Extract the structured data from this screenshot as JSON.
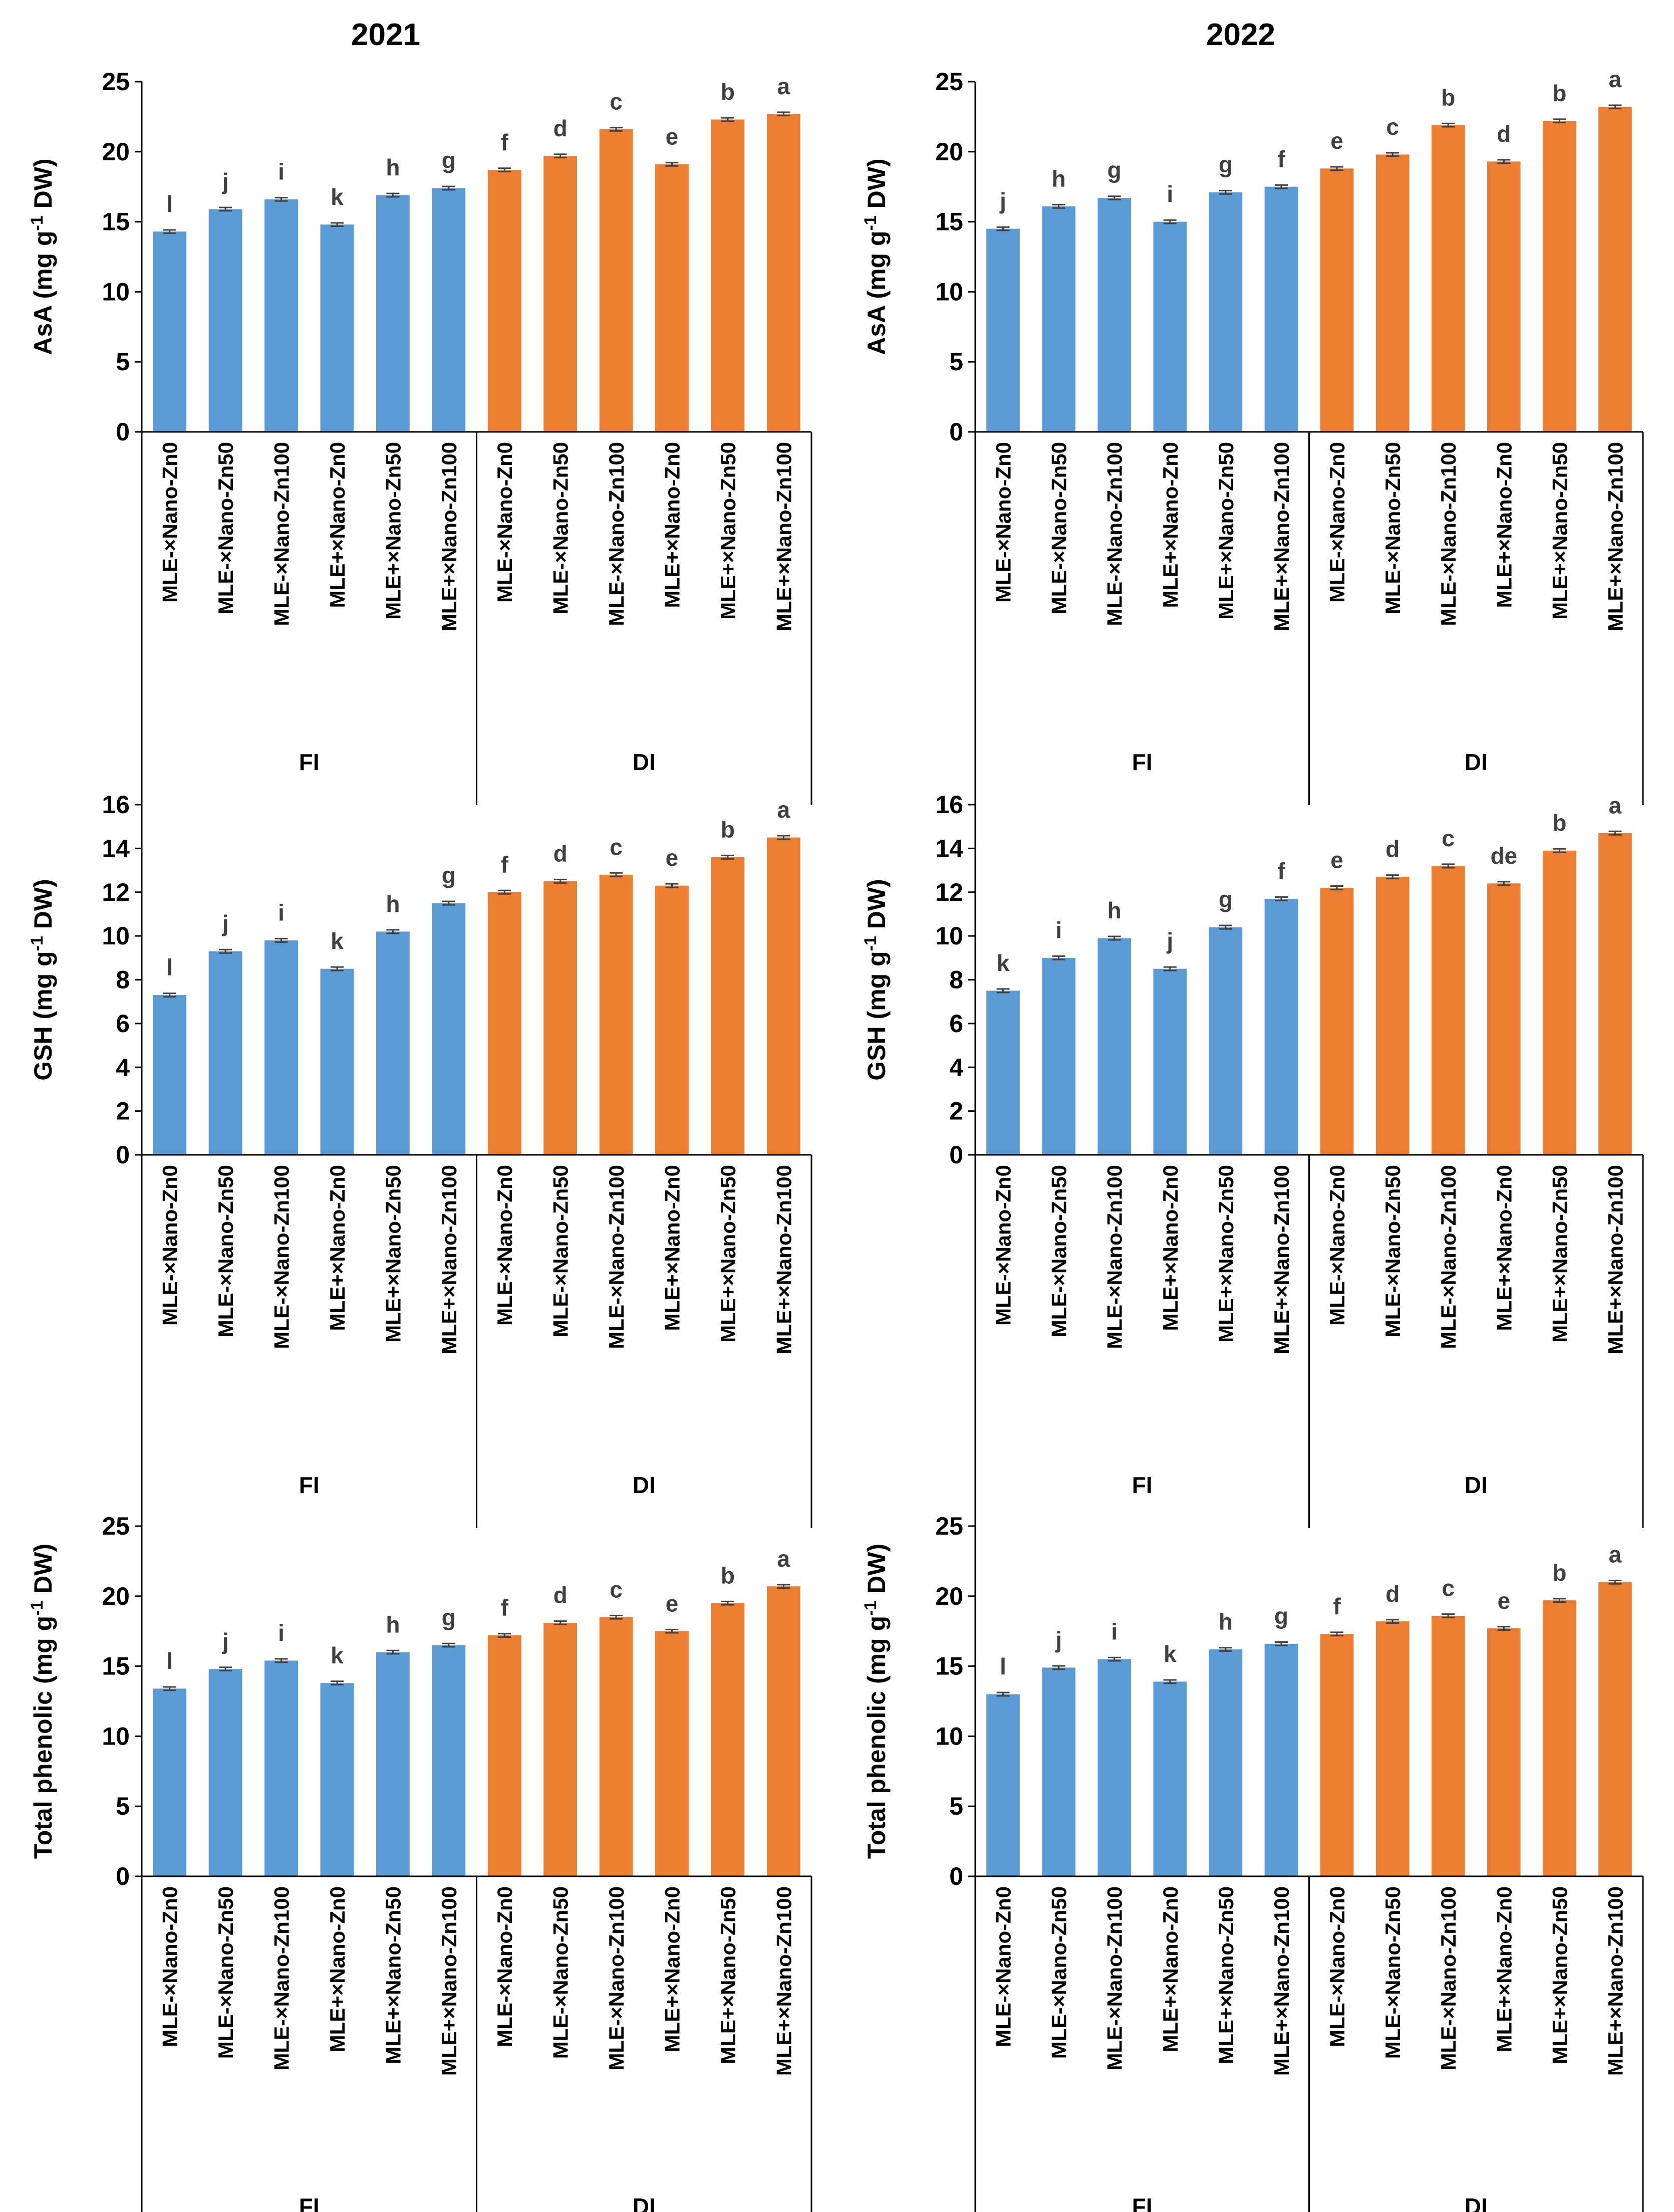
{
  "colors": {
    "FI": "#5B9BD5",
    "DI": "#ED7D31",
    "axis": "#000000",
    "error": "#404040",
    "letters": "#404040"
  },
  "years": [
    "2021",
    "2022"
  ],
  "categories": [
    "MLE-×Nano-Zn0",
    "MLE-×Nano-Zn50",
    "MLE-×Nano-Zn100",
    "MLE+×Nano-Zn0",
    "MLE+×Nano-Zn50",
    "MLE+×Nano-Zn100"
  ],
  "groups": [
    "FI",
    "DI"
  ],
  "chart_data": [
    {
      "type": "bar",
      "title": "2021",
      "ylabel": "AsA (mg g-1 DW)",
      "ylabel_main": "AsA (mg g",
      "ylabel_sup": "-1",
      "ylabel_tail": " DW)",
      "ylim": [
        0,
        25
      ],
      "yticks": [
        0,
        5,
        10,
        15,
        20,
        25
      ],
      "groups": [
        "FI",
        "DI"
      ],
      "series": [
        {
          "name": "FI",
          "values": [
            14.3,
            15.9,
            16.6,
            14.8,
            16.9,
            17.4
          ],
          "errors": [
            0.12,
            0.12,
            0.12,
            0.12,
            0.12,
            0.12
          ],
          "letters": [
            "l",
            "j",
            "i",
            "k",
            "h",
            "g"
          ]
        },
        {
          "name": "DI",
          "values": [
            18.7,
            19.7,
            21.6,
            19.1,
            22.3,
            22.7
          ],
          "errors": [
            0.12,
            0.12,
            0.12,
            0.12,
            0.12,
            0.12
          ],
          "letters": [
            "f",
            "d",
            "c",
            "e",
            "b",
            "a"
          ]
        }
      ]
    },
    {
      "type": "bar",
      "title": "2022",
      "ylabel": "AsA (mg g-1 DW)",
      "ylabel_main": "AsA (mg g",
      "ylabel_sup": "-1",
      "ylabel_tail": " DW)",
      "ylim": [
        0,
        25
      ],
      "yticks": [
        0,
        5,
        10,
        15,
        20,
        25
      ],
      "groups": [
        "FI",
        "DI"
      ],
      "series": [
        {
          "name": "FI",
          "values": [
            14.5,
            16.1,
            16.7,
            15.0,
            17.1,
            17.5
          ],
          "errors": [
            0.12,
            0.12,
            0.12,
            0.12,
            0.12,
            0.12
          ],
          "letters": [
            "j",
            "h",
            "g",
            "i",
            "g",
            "f"
          ]
        },
        {
          "name": "DI",
          "values": [
            18.8,
            19.8,
            21.9,
            19.3,
            22.2,
            23.2
          ],
          "errors": [
            0.12,
            0.12,
            0.12,
            0.12,
            0.12,
            0.12
          ],
          "letters": [
            "e",
            "c",
            "b",
            "d",
            "b",
            "a"
          ]
        }
      ]
    },
    {
      "type": "bar",
      "title": "",
      "ylabel": "GSH (mg g-1 DW)",
      "ylabel_main": "GSH (mg g",
      "ylabel_sup": "-1",
      "ylabel_tail": " DW)",
      "ylim": [
        0,
        16
      ],
      "yticks": [
        0,
        2,
        4,
        6,
        8,
        10,
        12,
        14,
        16
      ],
      "groups": [
        "FI",
        "DI"
      ],
      "series": [
        {
          "name": "FI",
          "values": [
            7.3,
            9.3,
            9.8,
            8.5,
            10.2,
            11.5
          ],
          "errors": [
            0.08,
            0.08,
            0.08,
            0.08,
            0.08,
            0.08
          ],
          "letters": [
            "l",
            "j",
            "i",
            "k",
            "h",
            "g"
          ]
        },
        {
          "name": "DI",
          "values": [
            12.0,
            12.5,
            12.8,
            12.3,
            13.6,
            14.5
          ],
          "errors": [
            0.08,
            0.08,
            0.08,
            0.08,
            0.08,
            0.08
          ],
          "letters": [
            "f",
            "d",
            "c",
            "e",
            "b",
            "a"
          ]
        }
      ]
    },
    {
      "type": "bar",
      "title": "",
      "ylabel": "GSH (mg g-1 DW)",
      "ylabel_main": "GSH (mg g",
      "ylabel_sup": "-1",
      "ylabel_tail": " DW)",
      "ylim": [
        0,
        16
      ],
      "yticks": [
        0,
        2,
        4,
        6,
        8,
        10,
        12,
        14,
        16
      ],
      "groups": [
        "FI",
        "DI"
      ],
      "series": [
        {
          "name": "FI",
          "values": [
            7.5,
            9.0,
            9.9,
            8.5,
            10.4,
            11.7
          ],
          "errors": [
            0.08,
            0.08,
            0.08,
            0.08,
            0.08,
            0.08
          ],
          "letters": [
            "k",
            "i",
            "h",
            "j",
            "g",
            "f"
          ]
        },
        {
          "name": "DI",
          "values": [
            12.2,
            12.7,
            13.2,
            12.4,
            13.9,
            14.7
          ],
          "errors": [
            0.08,
            0.08,
            0.08,
            0.08,
            0.08,
            0.08
          ],
          "letters": [
            "e",
            "d",
            "c",
            "de",
            "b",
            "a"
          ]
        }
      ]
    },
    {
      "type": "bar",
      "title": "",
      "ylabel": "Total phenolic (mg g-1 DW)",
      "ylabel_main": "Total phenolic (mg g",
      "ylabel_sup": "-1",
      "ylabel_tail": " DW)",
      "ylim": [
        0,
        25
      ],
      "yticks": [
        0,
        5,
        10,
        15,
        20,
        25
      ],
      "groups": [
        "FI",
        "DI"
      ],
      "series": [
        {
          "name": "FI",
          "values": [
            13.4,
            14.8,
            15.4,
            13.8,
            16.0,
            16.5
          ],
          "errors": [
            0.12,
            0.12,
            0.12,
            0.12,
            0.12,
            0.12
          ],
          "letters": [
            "l",
            "j",
            "i",
            "k",
            "h",
            "g"
          ]
        },
        {
          "name": "DI",
          "values": [
            17.2,
            18.1,
            18.5,
            17.5,
            19.5,
            20.7
          ],
          "errors": [
            0.12,
            0.12,
            0.12,
            0.12,
            0.12,
            0.12
          ],
          "letters": [
            "f",
            "d",
            "c",
            "e",
            "b",
            "a"
          ]
        }
      ]
    },
    {
      "type": "bar",
      "title": "",
      "ylabel": "Total phenolic (mg g-1 DW)",
      "ylabel_main": "Total phenolic (mg g",
      "ylabel_sup": "-1",
      "ylabel_tail": " DW)",
      "ylim": [
        0,
        25
      ],
      "yticks": [
        0,
        5,
        10,
        15,
        20,
        25
      ],
      "groups": [
        "FI",
        "DI"
      ],
      "series": [
        {
          "name": "FI",
          "values": [
            13.0,
            14.9,
            15.5,
            13.9,
            16.2,
            16.6
          ],
          "errors": [
            0.12,
            0.12,
            0.12,
            0.12,
            0.12,
            0.12
          ],
          "letters": [
            "l",
            "j",
            "i",
            "k",
            "h",
            "g"
          ]
        },
        {
          "name": "DI",
          "values": [
            17.3,
            18.2,
            18.6,
            17.7,
            19.7,
            21.0
          ],
          "errors": [
            0.12,
            0.12,
            0.12,
            0.12,
            0.12,
            0.12
          ],
          "letters": [
            "f",
            "d",
            "c",
            "e",
            "b",
            "a"
          ]
        }
      ]
    }
  ]
}
